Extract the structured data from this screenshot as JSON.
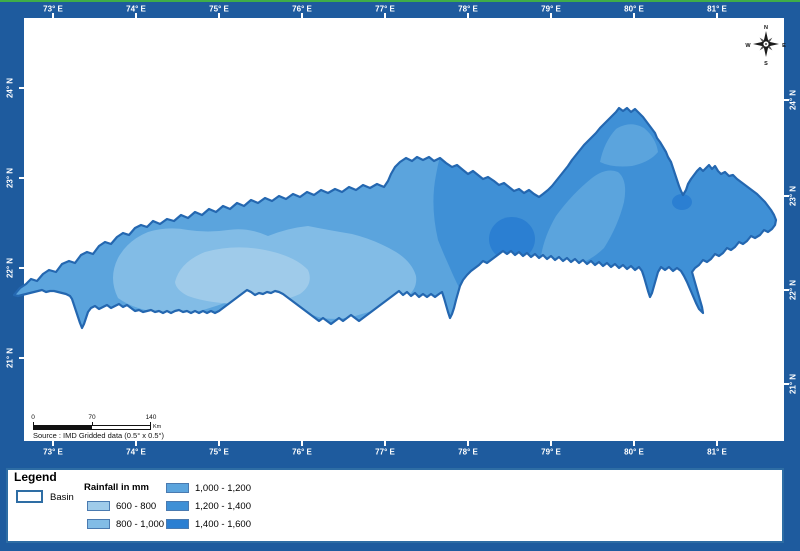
{
  "colors": {
    "page_background": "#1e5b9e",
    "map_background": "#ffffff",
    "top_edge_line": "#3fae49",
    "basin_outline": "#2467b0",
    "legend_border": "#2e6da4",
    "tick_label": "#ffffff",
    "rain_600_800": "#9fcbea",
    "rain_800_1000": "#82bce6",
    "rain_1000_1200": "#5ba4dd",
    "rain_1200_1400": "#3f90d6",
    "rain_1400_1600": "#2b7fd2"
  },
  "frame": {
    "top_labels": [
      "73° E",
      "74° E",
      "75° E",
      "76° E",
      "77° E",
      "78° E",
      "79° E",
      "80° E",
      "81° E"
    ],
    "bottom_labels": [
      "73° E",
      "74° E",
      "75° E",
      "76° E",
      "77° E",
      "78° E",
      "79° E",
      "80° E",
      "81° E"
    ],
    "left_labels": [
      "24° N",
      "23° N",
      "22° N",
      "21° N"
    ],
    "right_labels": [
      "24° N",
      "23° N",
      "22° N",
      "21° N"
    ]
  },
  "compass": {
    "north": "N",
    "east": "E",
    "south": "S",
    "west": "W"
  },
  "scale_bar": {
    "tick_labels": [
      "0",
      "70",
      "140"
    ],
    "unit": "Km"
  },
  "source_note": "Source : IMD Gridded data (0.5° x 0.5°)",
  "legend": {
    "title": "Legend",
    "basin": {
      "label": "Basin"
    },
    "rainfall": {
      "title": "Rainfall in mm",
      "classes": [
        {
          "label": "600 - 800",
          "color": "#9fcbea"
        },
        {
          "label": "800 - 1,000",
          "color": "#82bce6"
        },
        {
          "label": "1,000 - 1,200",
          "color": "#5ba4dd"
        },
        {
          "label": "1,200 - 1,400",
          "color": "#3f90d6"
        },
        {
          "label": "1,400 - 1,600",
          "color": "#2b7fd2"
        }
      ]
    }
  },
  "map_content": {
    "west_core_class": "600 - 800",
    "west_patch_class": "800 - 1,000",
    "west_base_class": "1,000 - 1,200",
    "east_base_class": "1,200 - 1,400",
    "high_rainfall_spots_class": "1,400 - 1,600"
  }
}
